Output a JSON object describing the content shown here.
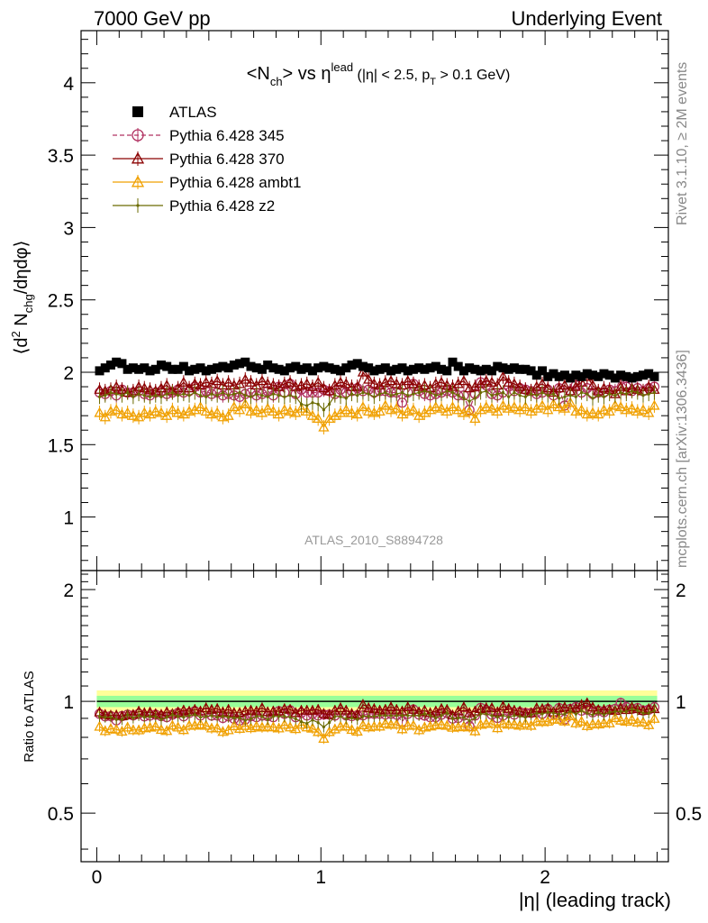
{
  "header": {
    "energy_label": "7000 GeV pp",
    "process_label": "Underlying Event"
  },
  "side_labels": {
    "rivet": "Rivet 3.1.10, ≥ 2M events",
    "mcplots": "mcplots.cern.ch [arXiv:1306.3436]"
  },
  "analysis_id": "ATLAS_2010_S8894728",
  "chart_data": [
    {
      "type": "scatter",
      "title": "<N_ch> vs η^lead (|η| < 2.5, p_T > 0.1 GeV)",
      "xlabel": "|η| (leading track)",
      "ylabel": "⟨d² N_chg/dηdφ⟩",
      "xlim": [
        -0.07,
        2.55
      ],
      "ylim": [
        0.63,
        4.36
      ],
      "yticks": [
        "1",
        "1.5",
        "2",
        "2.5",
        "3",
        "3.5",
        "4"
      ],
      "xtick_labels": [
        "0",
        "1",
        "2"
      ],
      "legend_position": "top-left",
      "x": [
        0.0125,
        0.0375,
        0.0625,
        0.0875,
        0.1125,
        0.1375,
        0.1625,
        0.1875,
        0.2125,
        0.2375,
        0.2625,
        0.2875,
        0.3125,
        0.3375,
        0.3625,
        0.3875,
        0.4125,
        0.4375,
        0.4625,
        0.4875,
        0.5125,
        0.5375,
        0.5625,
        0.5875,
        0.6125,
        0.6375,
        0.6625,
        0.6875,
        0.7125,
        0.7375,
        0.7625,
        0.7875,
        0.8125,
        0.8375,
        0.8625,
        0.8875,
        0.9125,
        0.9375,
        0.9625,
        0.9875,
        1.0125,
        1.0375,
        1.0625,
        1.0875,
        1.1125,
        1.1375,
        1.1625,
        1.1875,
        1.2125,
        1.2375,
        1.2625,
        1.2875,
        1.3125,
        1.3375,
        1.3625,
        1.3875,
        1.4125,
        1.4375,
        1.4625,
        1.4875,
        1.5125,
        1.5375,
        1.5625,
        1.5875,
        1.6125,
        1.6375,
        1.6625,
        1.6875,
        1.7125,
        1.7375,
        1.7625,
        1.7875,
        1.8125,
        1.8375,
        1.8625,
        1.8875,
        1.9125,
        1.9375,
        1.9625,
        1.9875,
        2.0125,
        2.0375,
        2.0625,
        2.0875,
        2.1125,
        2.1375,
        2.1625,
        2.1875,
        2.2125,
        2.2375,
        2.2625,
        2.2875,
        2.3125,
        2.3375,
        2.3625,
        2.3875,
        2.4125,
        2.4375,
        2.4625,
        2.4875
      ],
      "series": [
        {
          "name": "ATLAS",
          "color": "#000000",
          "marker": "square",
          "values": [
            2.01,
            2.03,
            2.05,
            2.07,
            2.06,
            2.02,
            2.03,
            2.02,
            2.03,
            2.01,
            2.02,
            2.05,
            2.04,
            2.02,
            2.02,
            2.04,
            2.01,
            2.02,
            2.03,
            2.01,
            2.02,
            2.03,
            2.04,
            2.03,
            2.05,
            2.06,
            2.07,
            2.04,
            2.03,
            2.02,
            2.05,
            2.03,
            2.02,
            2.01,
            2.03,
            2.04,
            2.02,
            2.03,
            2.01,
            2.03,
            2.04,
            2.03,
            2.02,
            2.01,
            2.03,
            2.05,
            2.06,
            2.04,
            2.03,
            2.01,
            2.02,
            2.03,
            2.01,
            2.02,
            2.03,
            2.01,
            2.02,
            2.03,
            2.02,
            2.03,
            2.04,
            2.02,
            2.01,
            2.07,
            2.04,
            2.01,
            2.03,
            2.02,
            2.01,
            2.02,
            2.01,
            2.04,
            2.03,
            2.02,
            2.03,
            2.02,
            2.02,
            2.01,
            1.98,
            2.01,
            1.97,
            1.99,
            1.97,
            1.98,
            1.96,
            1.98,
            1.97,
            1.99,
            1.98,
            1.97,
            1.99,
            1.98,
            1.96,
            1.98,
            1.97,
            1.96,
            1.97,
            1.98,
            1.99,
            1.97
          ]
        },
        {
          "name": "Pythia 6.428 345",
          "color": "#b03060",
          "marker": "circle-open",
          "line_style": "dashed",
          "values": [
            1.86,
            1.85,
            1.87,
            1.84,
            1.88,
            1.86,
            1.86,
            1.87,
            1.85,
            1.84,
            1.86,
            1.87,
            1.85,
            1.86,
            1.88,
            1.86,
            1.87,
            1.9,
            1.86,
            1.87,
            1.85,
            1.86,
            1.84,
            1.85,
            1.84,
            1.83,
            1.85,
            1.86,
            1.84,
            1.85,
            1.87,
            1.84,
            1.9,
            1.86,
            1.92,
            1.85,
            1.88,
            1.86,
            1.86,
            1.86,
            1.88,
            1.87,
            1.85,
            1.88,
            1.86,
            1.87,
            1.89,
            1.87,
            1.88,
            1.86,
            1.87,
            1.87,
            1.86,
            1.86,
            1.79,
            1.86,
            1.92,
            1.87,
            1.85,
            1.84,
            1.85,
            1.86,
            1.87,
            1.86,
            1.84,
            1.84,
            1.74,
            1.85,
            1.93,
            1.91,
            1.85,
            1.84,
            1.86,
            1.9,
            1.87,
            1.89,
            1.88,
            1.87,
            1.85,
            1.86,
            1.88,
            1.84,
            1.89,
            1.77,
            1.87,
            1.91,
            1.86,
            1.89,
            1.85,
            1.86,
            1.86,
            1.88,
            1.87,
            1.96,
            1.9,
            1.87,
            1.89,
            1.87,
            1.89,
            1.9
          ]
        },
        {
          "name": "Pythia 6.428 370",
          "color": "#8b0000",
          "marker": "triangle-open",
          "line_style": "solid",
          "values": [
            1.88,
            1.87,
            1.88,
            1.9,
            1.88,
            1.86,
            1.87,
            1.9,
            1.89,
            1.88,
            1.87,
            1.89,
            1.91,
            1.87,
            1.89,
            1.93,
            1.89,
            1.92,
            1.91,
            1.93,
            1.92,
            1.94,
            1.91,
            1.93,
            1.91,
            1.92,
            1.95,
            1.93,
            1.91,
            1.94,
            1.92,
            1.91,
            1.9,
            1.92,
            1.93,
            1.9,
            1.91,
            1.92,
            1.9,
            1.93,
            1.89,
            1.87,
            1.91,
            1.93,
            1.92,
            1.9,
            1.9,
            2.0,
            1.95,
            1.92,
            1.91,
            1.93,
            1.94,
            1.92,
            1.91,
            1.94,
            1.92,
            1.9,
            1.91,
            1.89,
            1.92,
            1.93,
            1.91,
            1.9,
            1.92,
            1.94,
            1.89,
            1.9,
            1.92,
            1.94,
            1.93,
            1.91,
            1.97,
            1.93,
            1.92,
            1.9,
            1.88,
            1.87,
            1.9,
            1.92,
            1.89,
            1.86,
            1.89,
            1.91,
            1.87,
            1.9,
            1.93,
            1.97,
            1.91,
            1.87,
            1.89,
            1.88,
            1.85,
            1.9,
            1.87,
            1.89,
            1.88,
            1.87,
            1.9,
            1.88
          ]
        },
        {
          "name": "Pythia 6.428 ambt1",
          "color": "#f0a000",
          "marker": "triangle-open",
          "line_style": "solid",
          "values": [
            1.72,
            1.69,
            1.73,
            1.74,
            1.71,
            1.72,
            1.7,
            1.69,
            1.72,
            1.71,
            1.73,
            1.72,
            1.7,
            1.74,
            1.72,
            1.71,
            1.73,
            1.74,
            1.76,
            1.73,
            1.71,
            1.72,
            1.69,
            1.7,
            1.76,
            1.74,
            1.78,
            1.73,
            1.74,
            1.72,
            1.75,
            1.73,
            1.71,
            1.74,
            1.73,
            1.72,
            1.75,
            1.73,
            1.7,
            1.68,
            1.62,
            1.68,
            1.7,
            1.72,
            1.74,
            1.72,
            1.71,
            1.76,
            1.73,
            1.72,
            1.73,
            1.77,
            1.74,
            1.75,
            1.71,
            1.73,
            1.74,
            1.7,
            1.72,
            1.74,
            1.76,
            1.75,
            1.73,
            1.76,
            1.74,
            1.72,
            1.73,
            1.68,
            1.74,
            1.76,
            1.75,
            1.73,
            1.77,
            1.75,
            1.76,
            1.74,
            1.76,
            1.73,
            1.75,
            1.77,
            1.74,
            1.78,
            1.76,
            1.75,
            1.79,
            1.73,
            1.74,
            1.71,
            1.72,
            1.71,
            1.74,
            1.73,
            1.77,
            1.76,
            1.74,
            1.75,
            1.73,
            1.74,
            1.72,
            1.77
          ]
        },
        {
          "name": "Pythia 6.428 z2",
          "color": "#6b6b00",
          "marker": "dot",
          "line_style": "solid",
          "values": [
            1.83,
            1.84,
            1.86,
            1.85,
            1.84,
            1.86,
            1.83,
            1.85,
            1.84,
            1.83,
            1.84,
            1.83,
            1.85,
            1.86,
            1.84,
            1.85,
            1.84,
            1.86,
            1.84,
            1.83,
            1.85,
            1.84,
            1.86,
            1.84,
            1.85,
            1.86,
            1.84,
            1.83,
            1.85,
            1.84,
            1.83,
            1.85,
            1.84,
            1.83,
            1.84,
            1.83,
            1.78,
            1.77,
            1.79,
            1.78,
            1.74,
            1.78,
            1.84,
            1.83,
            1.82,
            1.85,
            1.84,
            1.86,
            1.85,
            1.83,
            1.85,
            1.86,
            1.84,
            1.85,
            1.86,
            1.84,
            1.85,
            1.86,
            1.87,
            1.86,
            1.84,
            1.85,
            1.87,
            1.86,
            1.84,
            1.82,
            1.8,
            1.82,
            1.86,
            1.87,
            1.84,
            1.85,
            1.86,
            1.83,
            1.86,
            1.84,
            1.83,
            1.85,
            1.84,
            1.86,
            1.84,
            1.85,
            1.82,
            1.83,
            1.84,
            1.83,
            1.86,
            1.85,
            1.82,
            1.84,
            1.83,
            1.85,
            1.84,
            1.86,
            1.85,
            1.87,
            1.86,
            1.84,
            1.85,
            1.86
          ]
        }
      ]
    },
    {
      "type": "scatter",
      "title": "",
      "xlabel": "|η| (leading track)",
      "ylabel": "Ratio to ATLAS",
      "xlim": [
        -0.07,
        2.55
      ],
      "ylim": [
        0.37,
        2.25
      ],
      "yticks": [
        "0.5",
        "1",
        "2"
      ],
      "xtick_labels": [
        "0",
        "1",
        "2"
      ],
      "reference_line": 1,
      "uncertainty_bands": [
        {
          "name": "total",
          "color": "#ffff99",
          "lower": 0.93,
          "upper": 1.07
        },
        {
          "name": "statistical",
          "color": "#99ff99",
          "lower": 0.965,
          "upper": 1.035
        }
      ],
      "series_ratio_of": "chart_data.0.series relative to ATLAS"
    }
  ]
}
